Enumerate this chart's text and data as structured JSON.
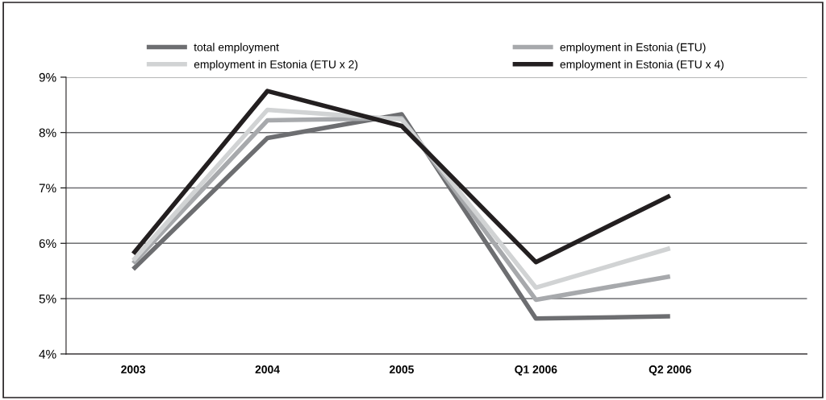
{
  "chart_data": {
    "type": "line",
    "categories": [
      "2003",
      "2004",
      "2005",
      "Q1 2006",
      "Q2 2006"
    ],
    "series": [
      {
        "name": "total employment",
        "color": "#6d6e71",
        "values": [
          5.53,
          7.9,
          8.33,
          4.64,
          4.68
        ]
      },
      {
        "name": "employment in Estonia (ETU)",
        "color": "#a7a9ac",
        "values": [
          5.64,
          8.22,
          8.26,
          4.98,
          5.4
        ]
      },
      {
        "name": "employment in Estonia (ETU x 2)",
        "color": "#d1d3d4",
        "values": [
          5.69,
          8.41,
          8.24,
          5.2,
          5.91
        ]
      },
      {
        "name": "employment in Estonia (ETU x 4)",
        "color": "#231f20",
        "values": [
          5.81,
          8.75,
          8.12,
          5.66,
          6.86
        ]
      }
    ],
    "ylim": [
      4,
      9
    ],
    "yticks": [
      {
        "value": 4,
        "label": "4%"
      },
      {
        "value": 5,
        "label": "5%"
      },
      {
        "value": 6,
        "label": "6%"
      },
      {
        "value": 7,
        "label": "7%"
      },
      {
        "value": 8,
        "label": "8%"
      },
      {
        "value": 9,
        "label": "9%"
      }
    ],
    "grid": "y",
    "legend": "top",
    "marker": "none",
    "line_style": "solid"
  }
}
